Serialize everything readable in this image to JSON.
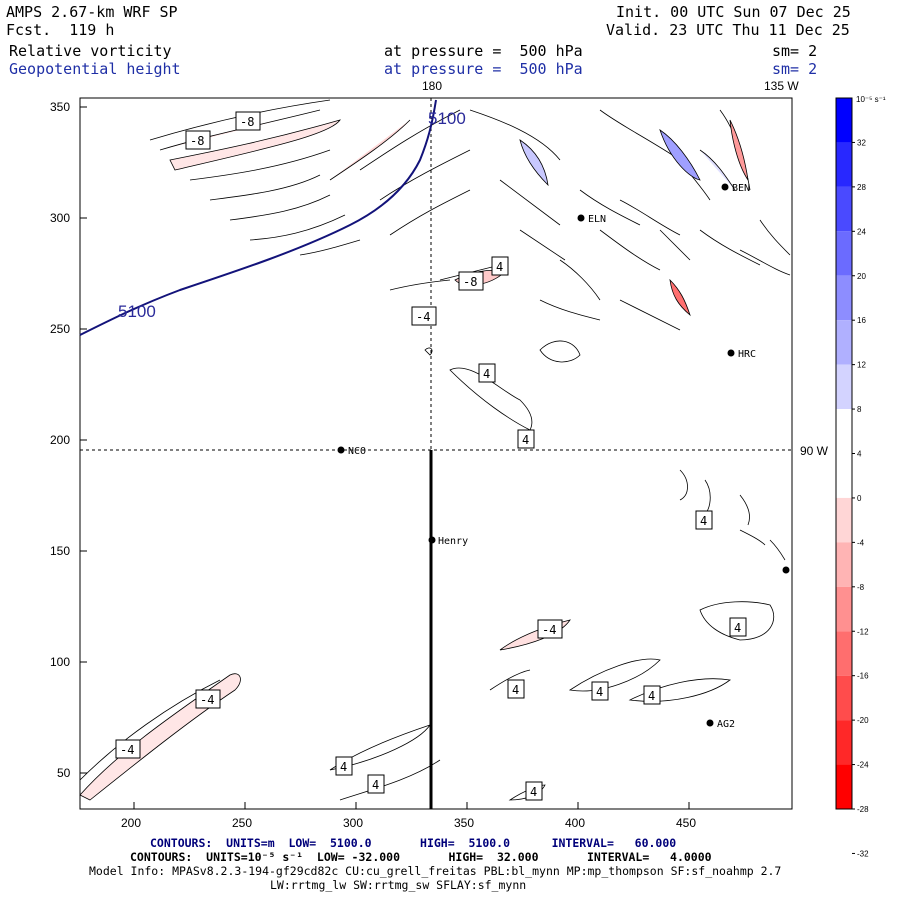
{
  "header": {
    "model": "AMPS 2.67-km WRF SP",
    "forecast": "Fcst.  119 h",
    "init": "Init. 00 UTC Sun 07 Dec 25",
    "valid": "Valid. 23 UTC Thu 11 Dec 25",
    "field1": "Relative vorticity",
    "field1_level": "at pressure =  500 hPa",
    "field1_sm": "sm= 2",
    "field2": "Geopotential height",
    "field2_level": "at pressure =  500 hPa",
    "field2_sm": "sm= 2"
  },
  "map": {
    "meridian_labels": [
      "180",
      "135 W"
    ],
    "parallel_label": "90 W",
    "x_ticks": [
      "200",
      "250",
      "300",
      "350",
      "400",
      "450"
    ],
    "y_ticks": [
      "350",
      "300",
      "250",
      "200",
      "150",
      "100",
      "50"
    ],
    "places": [
      "NCO",
      "Henry",
      "HRC",
      "AG2",
      "BEN",
      "ELN"
    ],
    "height_contour_labels": [
      "5100",
      "5100"
    ],
    "vorticity_labels": [
      "-8",
      "-8",
      "-8",
      "-4",
      "4",
      "4",
      "4",
      "4",
      "4",
      "-4",
      "4",
      "4",
      "4",
      "-4",
      "-4",
      "4",
      "4",
      "4"
    ]
  },
  "colorbar": {
    "unit": "10⁻⁵ s⁻¹",
    "labels": [
      "32",
      "28",
      "24",
      "20",
      "16",
      "12",
      "8",
      "4",
      "0",
      "-4",
      "-8",
      "-12",
      "-16",
      "-20",
      "-24",
      "-28",
      "-32"
    ],
    "colors": [
      "#0000ff",
      "#2828ff",
      "#4a4aff",
      "#6b6bff",
      "#8d8dff",
      "#b0b0ff",
      "#d3d3ff",
      "#ffffff",
      "#ffffff",
      "#ffd6d6",
      "#ffb4b4",
      "#ff9090",
      "#ff6e6e",
      "#ff4c4c",
      "#ff2828",
      "#ff0000"
    ]
  },
  "footer": {
    "height_contours": "CONTOURS:  UNITS=m  LOW=  5100.0       HIGH=  5100.0      INTERVAL=   60.000",
    "vort_contours": "CONTOURS:  UNITS=10⁻⁵ s⁻¹  LOW= -32.000       HIGH=  32.000       INTERVAL=   4.0000",
    "model_info": "Model Info: MPASv8.2.3-194-gf29cd82c CU:cu_grell_freitas PBL:bl_mynn MP:mp_thompson SF:sf_noahmp 2.7",
    "model_info2": "LW:rrtmg_lw SW:rrtmg_sw SFLAY:sf_mynn"
  }
}
